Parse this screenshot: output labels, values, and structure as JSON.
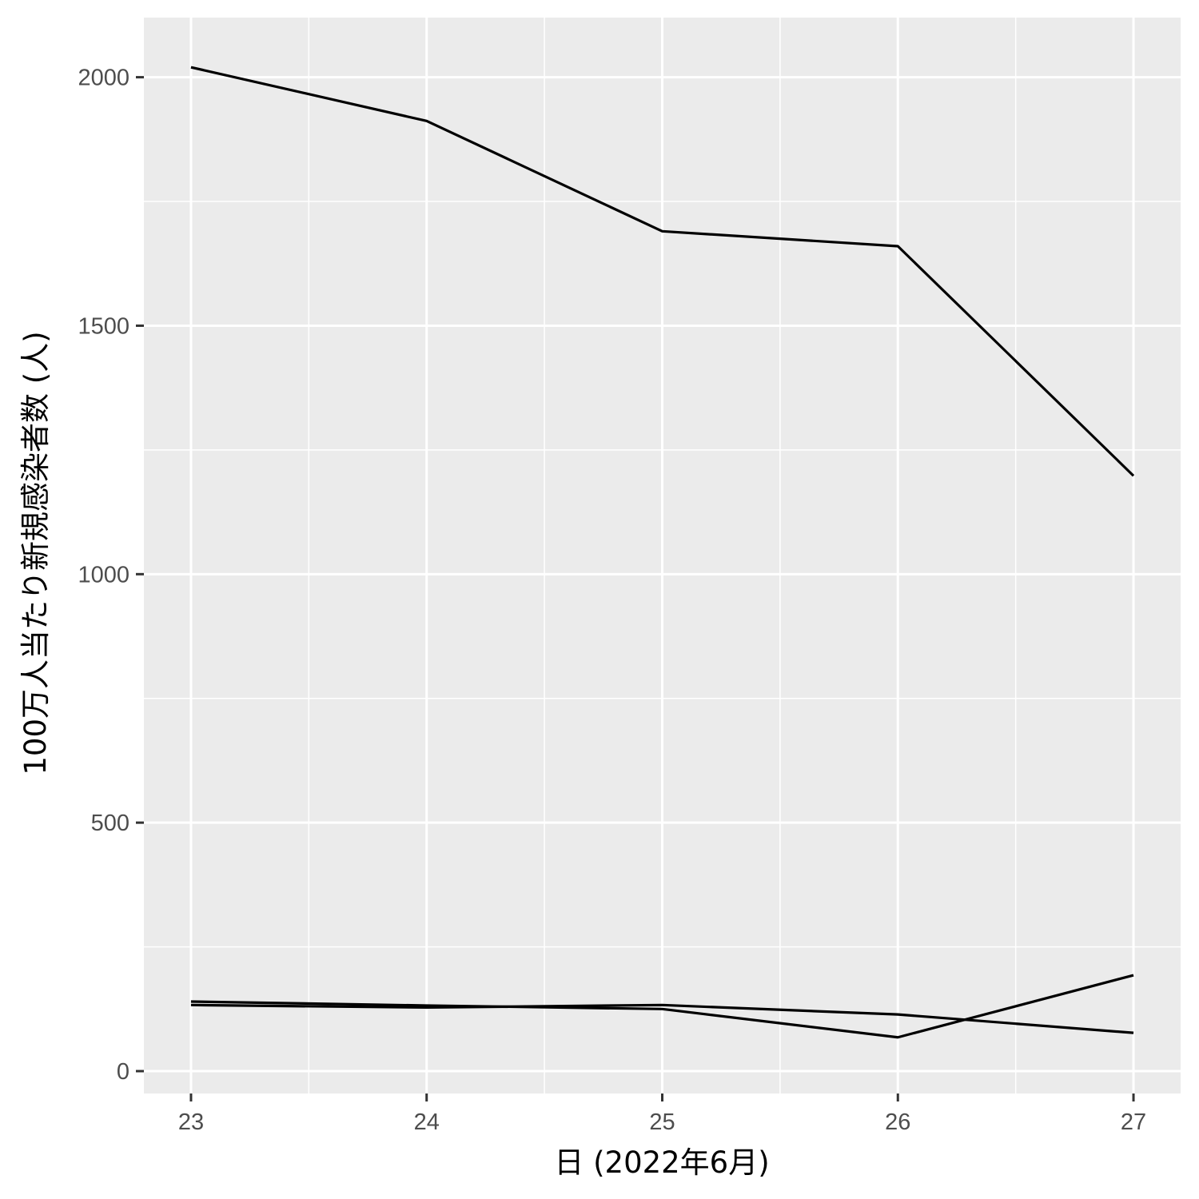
{
  "chart_data": {
    "type": "line",
    "xlabel": "日 (2022年6月)",
    "ylabel": "100万人当たり新規感染者数 (人)",
    "xlim": [
      22.8,
      27.2
    ],
    "ylim": [
      -45,
      2120
    ],
    "x_ticks": [
      23,
      24,
      25,
      26,
      27
    ],
    "x_tick_labels": [
      "23",
      "24",
      "25",
      "26",
      "27"
    ],
    "x_minor_ticks": [
      23.5,
      24.5,
      25.5,
      26.5
    ],
    "y_ticks": [
      0,
      500,
      1000,
      1500,
      2000
    ],
    "y_tick_labels": [
      "0",
      "500",
      "1000",
      "1500",
      "2000"
    ],
    "y_minor_ticks": [
      250,
      750,
      1250,
      1750
    ],
    "grid": true,
    "legend": "none",
    "colors": {
      "panel_background": "#ebebeb",
      "grid": "#ffffff",
      "line": "#000000",
      "tick_label": "#4d4d4d",
      "axis_title": "#000000"
    },
    "x": [
      23,
      24,
      25,
      26,
      27
    ],
    "series": [
      {
        "values": [
          2020,
          1912,
          1690,
          1660,
          1198
        ]
      },
      {
        "values": [
          140,
          132,
          125,
          68,
          193
        ]
      },
      {
        "values": [
          133,
          128,
          133,
          114,
          77
        ]
      }
    ]
  }
}
